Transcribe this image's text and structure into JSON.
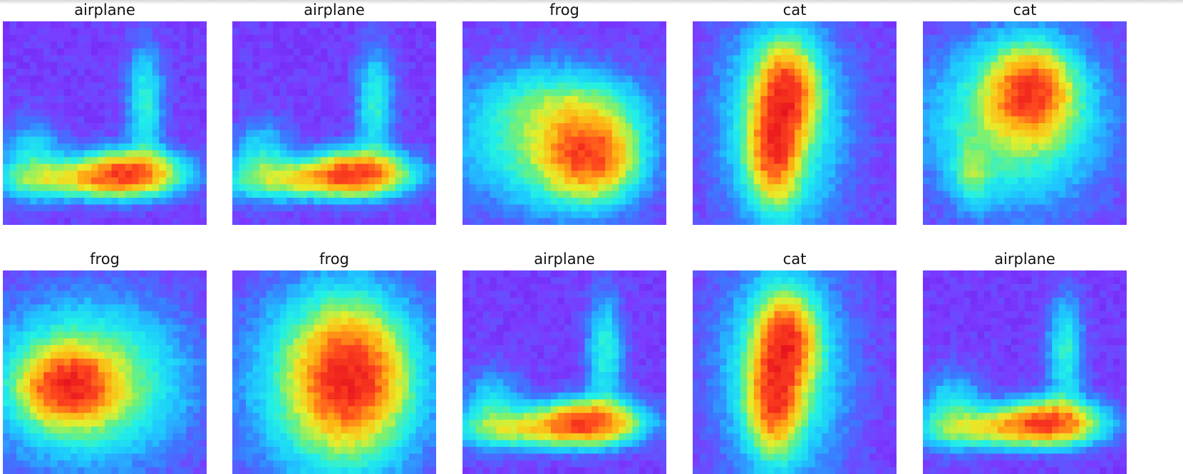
{
  "figure": {
    "panels": [
      {
        "label": "airplane",
        "pattern": "airplane"
      },
      {
        "label": "airplane",
        "pattern": "airplane"
      },
      {
        "label": "frog",
        "pattern": "frog-a"
      },
      {
        "label": "cat",
        "pattern": "cat-a"
      },
      {
        "label": "cat",
        "pattern": "cat-b"
      },
      {
        "label": "frog",
        "pattern": "frog-b"
      },
      {
        "label": "frog",
        "pattern": "frog-c"
      },
      {
        "label": "airplane",
        "pattern": "airplane"
      },
      {
        "label": "cat",
        "pattern": "cat-a"
      },
      {
        "label": "airplane",
        "pattern": "airplane"
      }
    ],
    "colormap": [
      "#3a1ea0",
      "#6a14e8",
      "#7a3cff",
      "#3c78ff",
      "#1ec8ff",
      "#22f0e6",
      "#6ef07a",
      "#e6ee2a",
      "#ffb414",
      "#ff4a1e",
      "#e8141e",
      "#a00a14"
    ]
  }
}
